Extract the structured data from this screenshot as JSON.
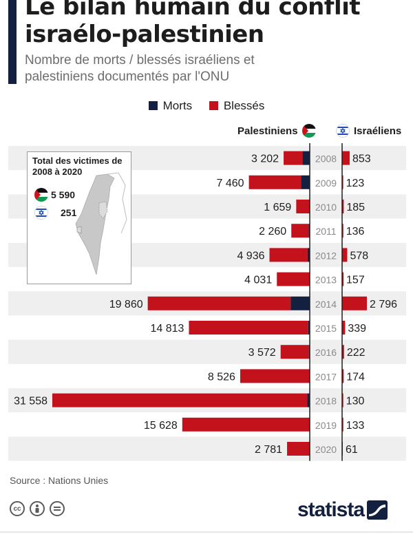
{
  "header": {
    "title": "Le bilan humain du conflit israélo-palestinien",
    "subtitle": "Nombre de morts / blessés israéliens et palestiniens documentés par l'ONU"
  },
  "legend": {
    "deaths_label": "Morts",
    "injured_label": "Blessés",
    "deaths_color": "#13203f",
    "injured_color": "#c4121c"
  },
  "sides": {
    "left_label": "Palestiniens",
    "right_label": "Israéliens",
    "left_flag_icon": "palestine-flag-icon",
    "right_flag_icon": "israel-flag-icon"
  },
  "inset": {
    "title": "Total des victimes de 2008 à 2020",
    "palestinian_total": "5 590",
    "israeli_total": "251",
    "map_icon": "israel-palestine-map-icon"
  },
  "chart_data": {
    "type": "bar",
    "categories": [
      "2008",
      "2009",
      "2010",
      "2011",
      "2012",
      "2013",
      "2014",
      "2015",
      "2016",
      "2017",
      "2018",
      "2019",
      "2020"
    ],
    "series": [
      {
        "name": "Palestiniens",
        "values": [
          3202,
          7460,
          1659,
          2260,
          4936,
          4031,
          19860,
          14813,
          3572,
          8526,
          31558,
          15628,
          2781
        ],
        "labels": [
          "3 202",
          "7 460",
          "1 659",
          "2 260",
          "4 936",
          "4 031",
          "19 860",
          "14 813",
          "3 572",
          "8 526",
          "31 558",
          "15 628",
          "2 781"
        ]
      },
      {
        "name": "Israéliens",
        "values": [
          853,
          123,
          185,
          136,
          578,
          157,
          2796,
          339,
          222,
          174,
          130,
          133,
          61
        ],
        "labels": [
          "853",
          "123",
          "185",
          "136",
          "578",
          "157",
          "2 796",
          "339",
          "222",
          "174",
          "130",
          "133",
          "61"
        ]
      }
    ],
    "palestinian_deaths_estimate": [
      880,
      1070,
      80,
      120,
      260,
      40,
      2330,
      180,
      110,
      80,
      290,
      30,
      30
    ]
  },
  "footer": {
    "source": "Source : Nations Unies",
    "brand": "statista",
    "license_icons": [
      "cc-icon",
      "attribution-icon",
      "no-derivatives-icon"
    ]
  }
}
